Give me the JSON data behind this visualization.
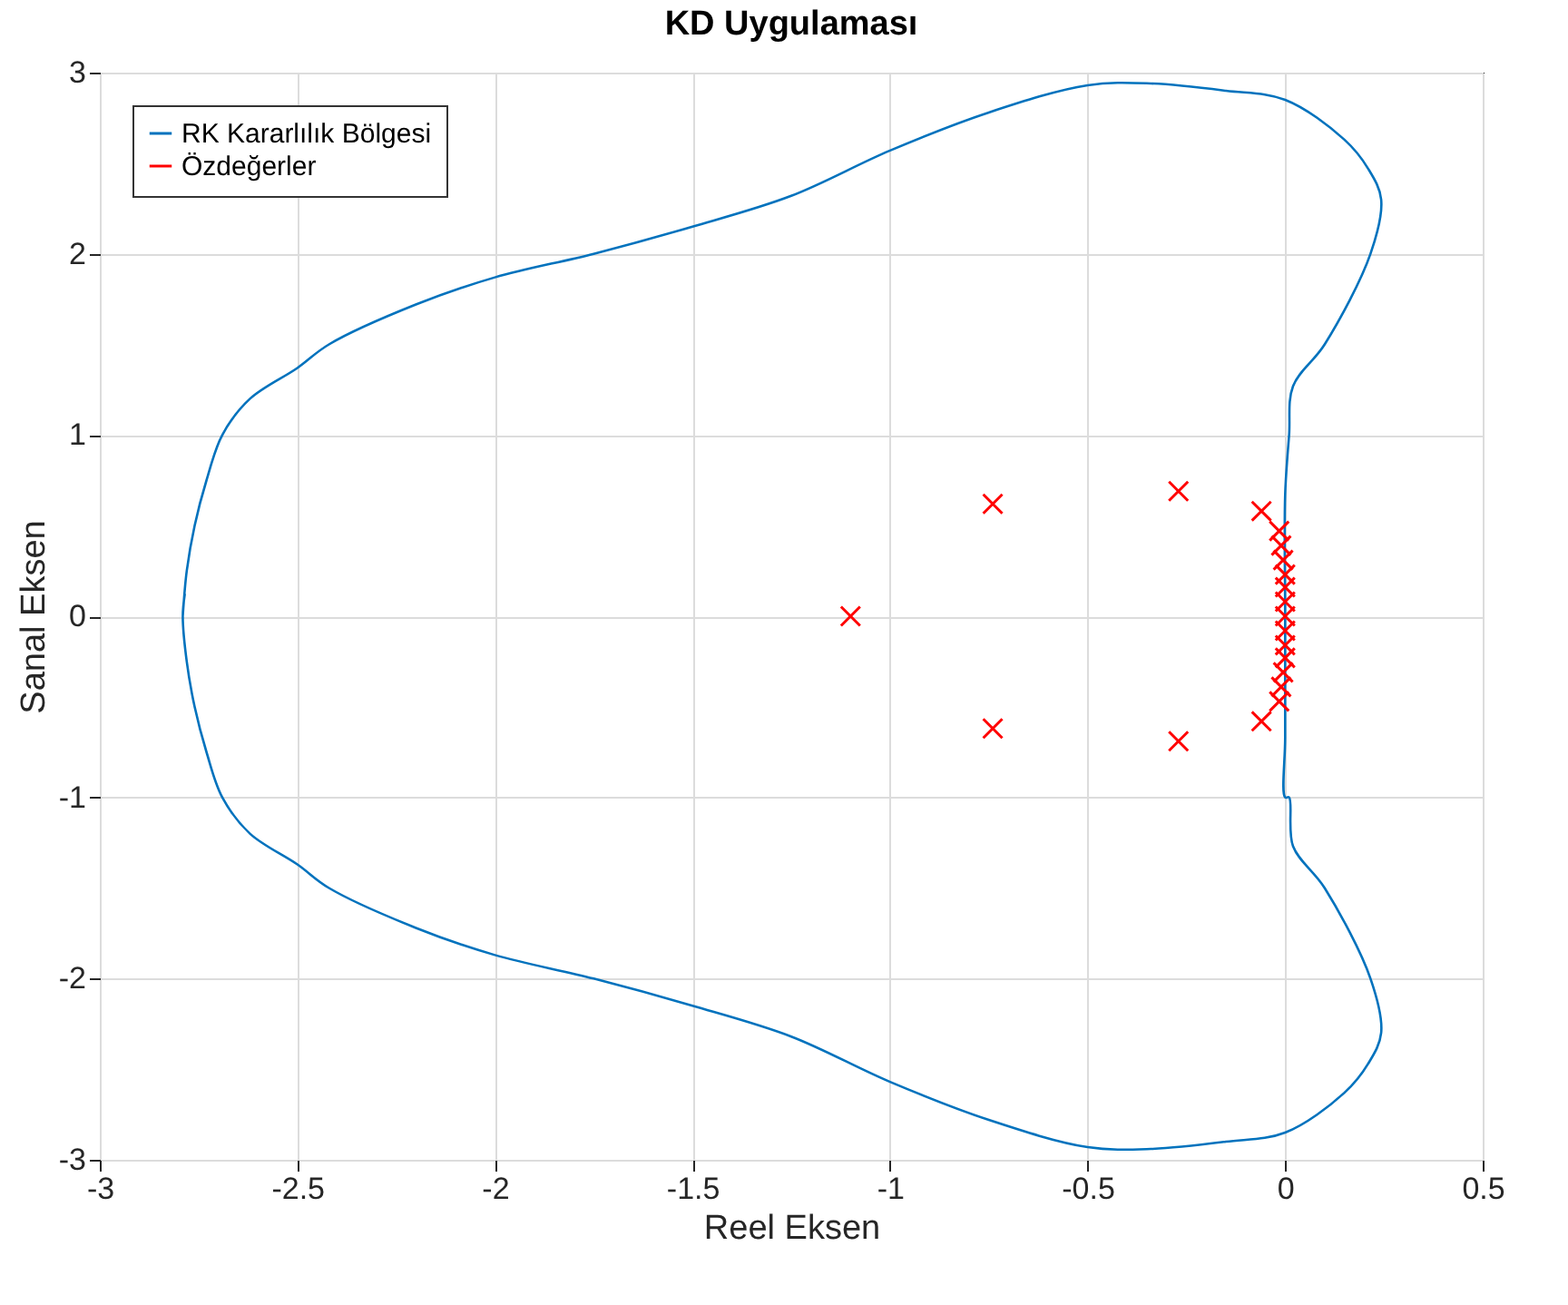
{
  "chart_data": {
    "type": "line",
    "title": "KD Uygulaması",
    "xlabel": "Reel Eksen",
    "ylabel": "Sanal Eksen",
    "xlim": [
      -3,
      0.5
    ],
    "xticks": [
      -3,
      -2.5,
      -2,
      -1.5,
      -1,
      -0.5,
      0,
      0.5
    ],
    "ylim": [
      -3,
      3
    ],
    "yticks": [
      -3,
      -2,
      -1,
      0,
      1,
      2,
      3
    ],
    "grid": true,
    "legend": "top left",
    "series": [
      {
        "name": "RK Kararlılık Bölgesi",
        "color": "#0072bd",
        "line_style": "solid",
        "marker": "none",
        "x": [
          -2.79,
          -2.78,
          -2.76,
          -2.73,
          -2.69,
          -2.62,
          -2.5,
          -2.42,
          -2.2,
          -2.0,
          -1.75,
          -1.5,
          -1.25,
          -1.0,
          -0.75,
          -0.5,
          -0.34,
          -0.15,
          0.0,
          0.15,
          0.21,
          0.243,
          0.216,
          0.1,
          0.02,
          0.01,
          0.0,
          0.0,
          0.0,
          0.0,
          0.01,
          0.02,
          0.1,
          0.216,
          0.243,
          0.21,
          0.15,
          0.0,
          -0.15,
          -0.34,
          -0.5,
          -0.75,
          -1.0,
          -1.25,
          -1.5,
          -1.75,
          -2.0,
          -2.2,
          -2.42,
          -2.5,
          -2.62,
          -2.69,
          -2.73,
          -2.76,
          -2.78,
          -2.79,
          -2.785
        ],
        "values": [
          0,
          0.25,
          0.5,
          0.75,
          1.0,
          1.2,
          1.37,
          1.5,
          1.72,
          1.87,
          2.0,
          2.15,
          2.32,
          2.57,
          2.78,
          2.93,
          2.94,
          2.9,
          2.85,
          2.63,
          2.47,
          2.3,
          2.0,
          1.5,
          1.27,
          1.0,
          0.67,
          0,
          -0.67,
          -1.0,
          -1.0,
          -1.27,
          -1.5,
          -2.0,
          -2.3,
          -2.47,
          -2.63,
          -2.85,
          -2.9,
          -2.94,
          -2.93,
          -2.78,
          -2.57,
          -2.32,
          -2.15,
          -2.0,
          -1.87,
          -1.72,
          -1.5,
          -1.37,
          -1.2,
          -1.0,
          -0.75,
          -0.5,
          -0.25,
          0,
          0.12
        ]
      },
      {
        "name": "Özdeğerler",
        "type": "scatter",
        "color": "#ff0000",
        "marker": "cross",
        "x": [
          -1.1,
          -0.74,
          -0.74,
          -0.27,
          -0.27,
          -0.06,
          -0.06,
          -0.015,
          -0.015,
          -0.01,
          -0.01,
          -0.005,
          -0.005,
          0,
          0,
          0,
          0,
          0,
          0,
          0
        ],
        "values": [
          0,
          0.62,
          -0.62,
          0.69,
          -0.69,
          0.58,
          -0.58,
          0.47,
          -0.47,
          0.39,
          -0.39,
          0.31,
          -0.31,
          0.23,
          -0.23,
          0.16,
          -0.16,
          0.08,
          -0.08,
          0
        ]
      }
    ]
  }
}
